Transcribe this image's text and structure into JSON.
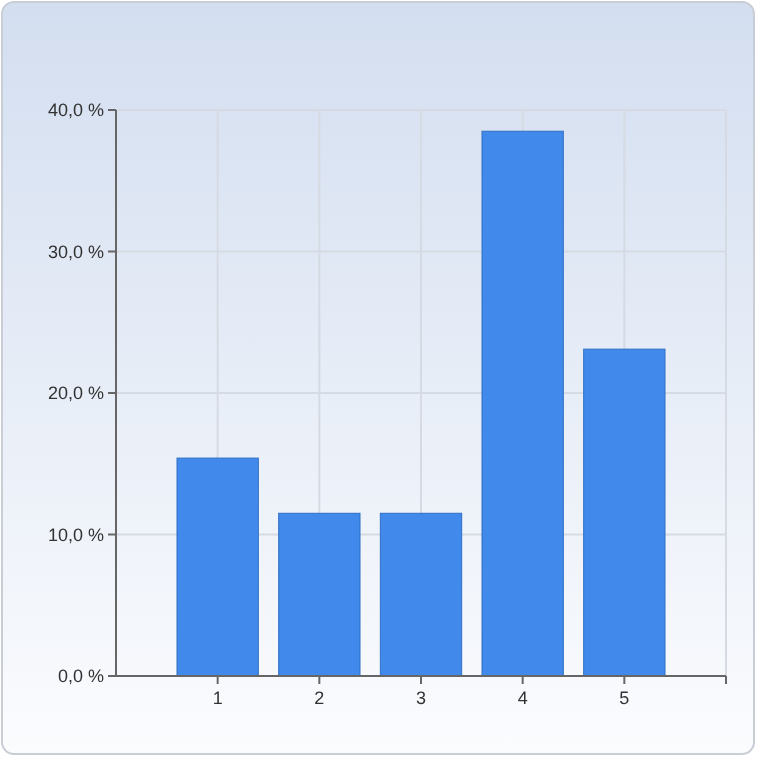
{
  "chart_data": {
    "type": "bar",
    "categories": [
      "1",
      "2",
      "3",
      "4",
      "5"
    ],
    "values": [
      15.4,
      11.5,
      11.5,
      38.5,
      23.1
    ],
    "color": "#4189ea",
    "ylim": [
      0,
      40
    ],
    "yticks": [
      {
        "value": 0,
        "label": "0,0 %"
      },
      {
        "value": 10,
        "label": "10,0 %"
      },
      {
        "value": 20,
        "label": "20,0 %"
      },
      {
        "value": 30,
        "label": "30,0 %"
      },
      {
        "value": 40,
        "label": "40,0 %"
      }
    ],
    "grid": true
  }
}
